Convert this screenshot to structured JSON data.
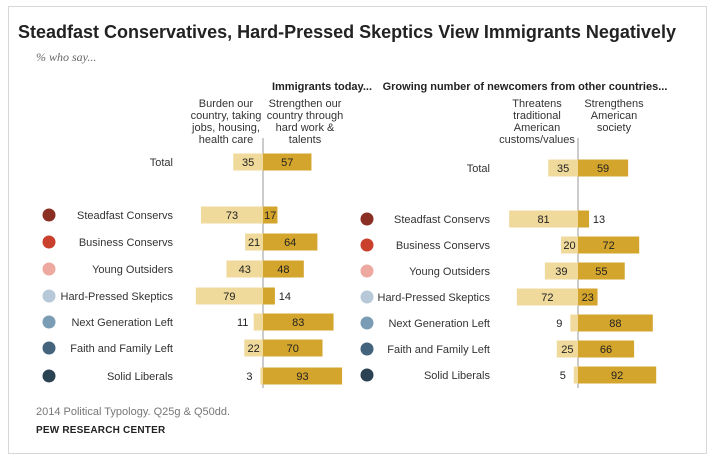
{
  "title": "Steadfast Conservatives, Hard-Pressed Skeptics View Immigrants Negatively",
  "subtitle": "% who say...",
  "source": "2014 Political Typology. Q25g & Q50dd.",
  "organization": "PEW RESEARCH CENTER",
  "colors": {
    "negative": "#efd99b",
    "positive": "#d4a52c",
    "divider": "#999999"
  },
  "chart_data": [
    {
      "type": "bar",
      "title": "Immigrants today...",
      "negative_label": [
        "Burden our",
        "country, taking",
        "jobs, housing,",
        "health care"
      ],
      "positive_label": [
        "Strengthen our",
        "country through",
        "hard work &",
        "talents"
      ],
      "total": {
        "name": "Total",
        "negative": 35,
        "positive": 57
      },
      "categories": [
        "Steadfast Conservs",
        "Business Conservs",
        "Young Outsiders",
        "Hard-Pressed Skeptics",
        "Next Generation Left",
        "Faith and Family Left",
        "Solid Liberals"
      ],
      "series": [
        {
          "name": "Burden our country, taking jobs, housing, health care",
          "values": [
            73,
            21,
            43,
            79,
            11,
            22,
            3
          ]
        },
        {
          "name": "Strengthen our country through hard work & talents",
          "values": [
            17,
            64,
            48,
            14,
            83,
            70,
            93
          ]
        }
      ],
      "group_colors": [
        "#8b2e24",
        "#c9412d",
        "#eda9a0",
        "#b7c8d8",
        "#7a9cb4",
        "#44637c",
        "#2b4253"
      ]
    },
    {
      "type": "bar",
      "title": "Growing number of newcomers from other countries...",
      "negative_label": [
        "Threatens",
        "traditional",
        "American",
        "customs/values"
      ],
      "positive_label": [
        "Strengthens",
        "American",
        "society"
      ],
      "total": {
        "name": "Total",
        "negative": 35,
        "positive": 59
      },
      "categories": [
        "Steadfast Conservs",
        "Business Conservs",
        "Young Outsiders",
        "Hard-Pressed Skeptics",
        "Next Generation Left",
        "Faith and Family Left",
        "Solid Liberals"
      ],
      "series": [
        {
          "name": "Threatens traditional American customs/values",
          "values": [
            81,
            20,
            39,
            72,
            9,
            25,
            5
          ]
        },
        {
          "name": "Strengthens American society",
          "values": [
            13,
            72,
            55,
            23,
            88,
            66,
            92
          ]
        }
      ],
      "group_colors": [
        "#8b2e24",
        "#c9412d",
        "#eda9a0",
        "#b7c8d8",
        "#7a9cb4",
        "#44637c",
        "#2b4253"
      ]
    }
  ]
}
